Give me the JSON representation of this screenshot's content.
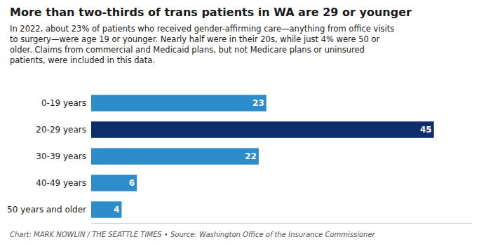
{
  "chart_data": {
    "type": "bar",
    "title": "More than two-thirds of trans patients in WA are 29 or younger",
    "subtitle": "In 2022, about 23% of patients who received gender-affirming care—anything from office visits\nto surgery—were age 19 or younger. Nearly half were in their 20s, while just 4% were 50 or\nolder. Claims from commercial and Medicaid plans, but not Medicare plans or uninsured\npatients, were included in this data.",
    "annotations": [
      "Chart: MARK NOWLIN / THE SEATTLE TIMES • Source: Washington Office of the Insurance Commissioner"
    ],
    "categories": [
      "0-19 years",
      "20-29 years",
      "30-39 years",
      "40-49 years",
      "50 years and older"
    ],
    "values": [
      23,
      45,
      22,
      6,
      4
    ],
    "colors": [
      "#2d8cca",
      "#0d2d6b",
      "#2d8cca",
      "#2d8cca",
      "#2d8cca"
    ],
    "orientation": "horizontal",
    "xlim": [
      0,
      50
    ],
    "data_labels": true,
    "tick_labels": "y",
    "grid": false
  }
}
